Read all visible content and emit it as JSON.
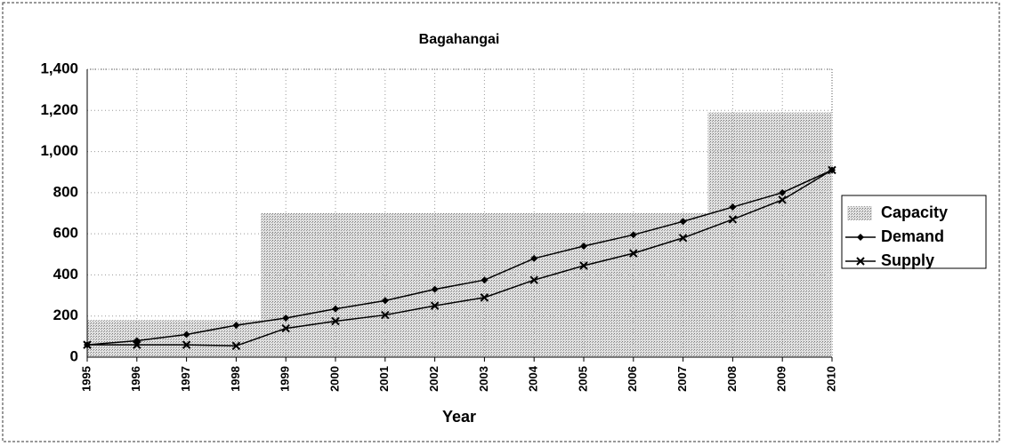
{
  "chart_data": {
    "type": "line",
    "title": "Bagahangai",
    "xlabel": "Year",
    "categories": [
      "1995",
      "1996",
      "1997",
      "1998",
      "1999",
      "2000",
      "2001",
      "2002",
      "2003",
      "2004",
      "2005",
      "2006",
      "2007",
      "2008",
      "2009",
      "2010"
    ],
    "series": [
      {
        "name": "Capacity",
        "kind": "step-area",
        "color": "#b4b4b4",
        "values": [
          180,
          180,
          180,
          180,
          700,
          700,
          700,
          700,
          700,
          700,
          700,
          700,
          700,
          1190,
          1190,
          1190
        ]
      },
      {
        "name": "Demand",
        "kind": "line",
        "marker": "diamond",
        "color": "#000000",
        "values": [
          60,
          80,
          110,
          155,
          190,
          235,
          275,
          330,
          375,
          480,
          540,
          595,
          660,
          730,
          800,
          910
        ]
      },
      {
        "name": "Supply",
        "kind": "line",
        "marker": "x",
        "color": "#000000",
        "values": [
          60,
          60,
          60,
          55,
          140,
          175,
          205,
          250,
          290,
          375,
          445,
          505,
          580,
          670,
          765,
          910
        ]
      }
    ],
    "ylim": [
      0,
      1400
    ],
    "yticks": [
      0,
      200,
      400,
      600,
      800,
      {
        "value": 1000,
        "label": "1,000"
      },
      {
        "value": 1200,
        "label": "1,200"
      },
      {
        "value": 1400,
        "label": "1,400"
      }
    ],
    "grid": true,
    "legend": "right"
  }
}
